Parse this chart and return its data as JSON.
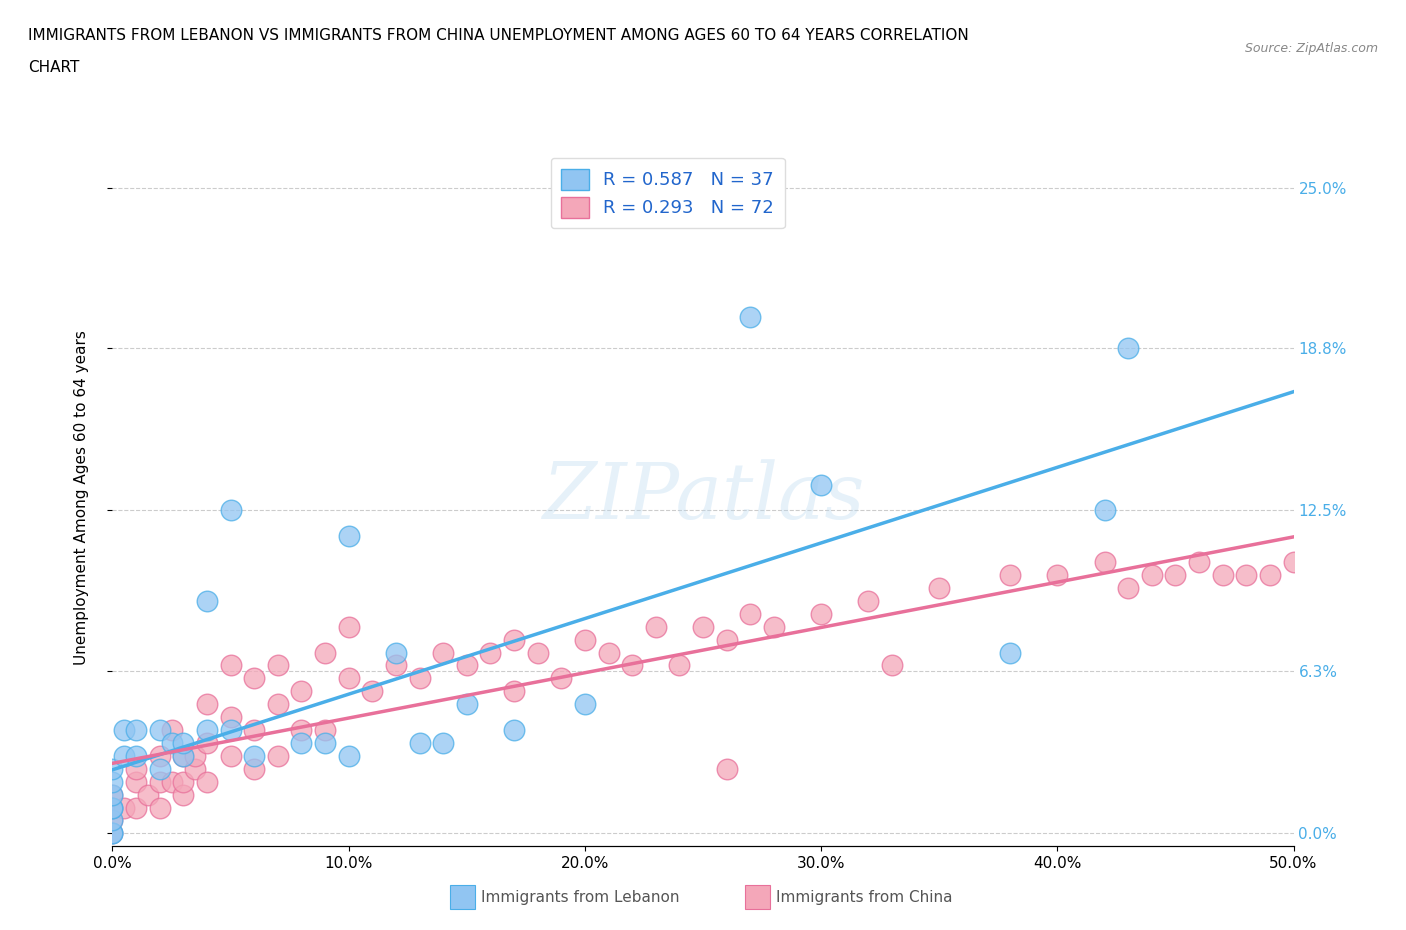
{
  "title_line1": "IMMIGRANTS FROM LEBANON VS IMMIGRANTS FROM CHINA UNEMPLOYMENT AMONG AGES 60 TO 64 YEARS CORRELATION",
  "title_line2": "CHART",
  "source_text": "Source: ZipAtlas.com",
  "ylabel": "Unemployment Among Ages 60 to 64 years",
  "xlim": [
    0.0,
    0.5
  ],
  "ylim": [
    -0.005,
    0.265
  ],
  "xticks": [
    0.0,
    0.1,
    0.2,
    0.3,
    0.4,
    0.5
  ],
  "xticklabels": [
    "0.0%",
    "10.0%",
    "20.0%",
    "30.0%",
    "40.0%",
    "50.0%"
  ],
  "ytick_positions": [
    0.0,
    0.063,
    0.125,
    0.188,
    0.25
  ],
  "ytick_labels": [
    "0.0%",
    "6.3%",
    "12.5%",
    "18.8%",
    "25.0%"
  ],
  "right_ytick_positions": [
    0.0,
    0.063,
    0.125,
    0.188,
    0.25
  ],
  "right_ytick_labels": [
    "0.0%",
    "6.3%",
    "12.5%",
    "18.8%",
    "25.0%"
  ],
  "watermark": "ZIPatlas",
  "R_lebanon": 0.587,
  "N_lebanon": 37,
  "R_china": 0.293,
  "N_china": 72,
  "color_lebanon": "#91C5F2",
  "color_china": "#F4A7B9",
  "line_color_lebanon": "#4AAEE8",
  "line_color_china": "#E8709A",
  "lebanon_x": [
    0.0,
    0.0,
    0.0,
    0.0,
    0.0,
    0.0,
    0.0,
    0.0,
    0.005,
    0.005,
    0.01,
    0.01,
    0.02,
    0.02,
    0.025,
    0.03,
    0.03,
    0.04,
    0.04,
    0.05,
    0.05,
    0.06,
    0.08,
    0.09,
    0.1,
    0.1,
    0.12,
    0.13,
    0.14,
    0.15,
    0.17,
    0.2,
    0.27,
    0.3,
    0.38,
    0.42,
    0.43
  ],
  "lebanon_y": [
    0.0,
    0.0,
    0.005,
    0.01,
    0.01,
    0.015,
    0.02,
    0.025,
    0.03,
    0.04,
    0.03,
    0.04,
    0.025,
    0.04,
    0.035,
    0.03,
    0.035,
    0.04,
    0.09,
    0.04,
    0.125,
    0.03,
    0.035,
    0.035,
    0.03,
    0.115,
    0.07,
    0.035,
    0.035,
    0.05,
    0.04,
    0.05,
    0.2,
    0.135,
    0.07,
    0.125,
    0.188
  ],
  "china_x": [
    0.0,
    0.0,
    0.0,
    0.0,
    0.005,
    0.01,
    0.01,
    0.01,
    0.015,
    0.02,
    0.02,
    0.02,
    0.025,
    0.025,
    0.03,
    0.03,
    0.03,
    0.035,
    0.035,
    0.04,
    0.04,
    0.04,
    0.05,
    0.05,
    0.05,
    0.06,
    0.06,
    0.06,
    0.07,
    0.07,
    0.07,
    0.08,
    0.08,
    0.09,
    0.09,
    0.1,
    0.1,
    0.11,
    0.12,
    0.13,
    0.14,
    0.15,
    0.16,
    0.17,
    0.17,
    0.18,
    0.19,
    0.2,
    0.21,
    0.22,
    0.23,
    0.24,
    0.25,
    0.26,
    0.27,
    0.28,
    0.3,
    0.32,
    0.33,
    0.35,
    0.38,
    0.4,
    0.42,
    0.43,
    0.44,
    0.45,
    0.46,
    0.47,
    0.48,
    0.49,
    0.5,
    0.26
  ],
  "china_y": [
    0.0,
    0.005,
    0.01,
    0.015,
    0.01,
    0.01,
    0.02,
    0.025,
    0.015,
    0.01,
    0.02,
    0.03,
    0.02,
    0.04,
    0.015,
    0.02,
    0.03,
    0.025,
    0.03,
    0.02,
    0.035,
    0.05,
    0.03,
    0.045,
    0.065,
    0.025,
    0.04,
    0.06,
    0.03,
    0.05,
    0.065,
    0.04,
    0.055,
    0.04,
    0.07,
    0.06,
    0.08,
    0.055,
    0.065,
    0.06,
    0.07,
    0.065,
    0.07,
    0.055,
    0.075,
    0.07,
    0.06,
    0.075,
    0.07,
    0.065,
    0.08,
    0.065,
    0.08,
    0.075,
    0.085,
    0.08,
    0.085,
    0.09,
    0.065,
    0.095,
    0.1,
    0.1,
    0.105,
    0.095,
    0.1,
    0.1,
    0.105,
    0.1,
    0.1,
    0.1,
    0.105,
    0.025
  ]
}
